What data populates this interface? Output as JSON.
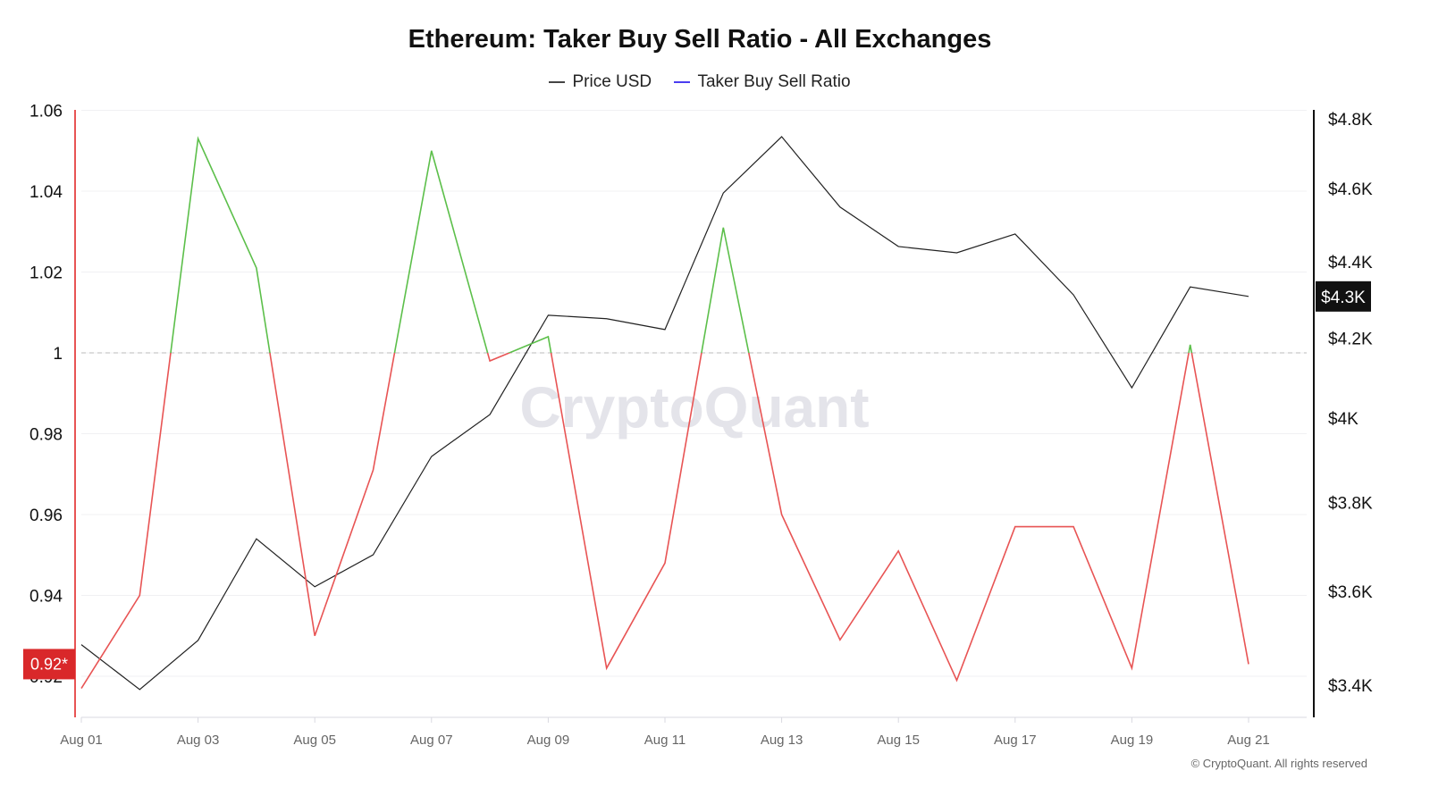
{
  "chart_data": {
    "type": "line",
    "title": "Ethereum: Taker Buy Sell Ratio - All Exchanges",
    "legend": [
      {
        "name": "Price USD",
        "color": "#444444"
      },
      {
        "name": "Taker Buy Sell Ratio",
        "color": "#4b3df0"
      }
    ],
    "legend_position": "top-center",
    "x": [
      "Aug 01",
      "Aug 02",
      "Aug 03",
      "Aug 04",
      "Aug 05",
      "Aug 06",
      "Aug 07",
      "Aug 08",
      "Aug 09",
      "Aug 10",
      "Aug 11",
      "Aug 12",
      "Aug 13",
      "Aug 14",
      "Aug 15",
      "Aug 16",
      "Aug 17",
      "Aug 18",
      "Aug 19",
      "Aug 20",
      "Aug 21"
    ],
    "x_tick_labels": [
      "Aug 01",
      "Aug 03",
      "Aug 05",
      "Aug 07",
      "Aug 09",
      "Aug 11",
      "Aug 13",
      "Aug 15",
      "Aug 17",
      "Aug 19",
      "Aug 21"
    ],
    "series": [
      {
        "name": "Taker Buy Sell Ratio",
        "axis": "left",
        "values": [
          0.917,
          0.94,
          1.053,
          1.021,
          0.93,
          0.971,
          1.05,
          0.998,
          1.004,
          0.922,
          0.948,
          1.031,
          0.96,
          0.929,
          0.951,
          0.919,
          0.957,
          0.957,
          0.922,
          1.002,
          0.923
        ],
        "color_above_1": "#5cbf4a",
        "color_below_1": "#e85454"
      },
      {
        "name": "Price USD",
        "axis": "right",
        "values": [
          3485,
          3391,
          3494,
          3717,
          3610,
          3681,
          3908,
          4009,
          4259,
          4250,
          4222,
          4588,
          4748,
          4549,
          4441,
          4424,
          4475,
          4312,
          4075,
          4333,
          4308
        ],
        "color": "#222222"
      }
    ],
    "left_axis": {
      "ticks": [
        "1.06",
        "1.04",
        "1.02",
        "1",
        "0.98",
        "0.96",
        "0.94",
        "0.92"
      ],
      "tick_values": [
        1.06,
        1.04,
        1.02,
        1,
        0.98,
        0.96,
        0.94,
        0.92
      ],
      "ylim": [
        0.905,
        1.06
      ],
      "color": "#e85454"
    },
    "right_axis": {
      "ticks": [
        "$4.8K",
        "$4.6K",
        "$4.4K",
        "$4.2K",
        "$4K",
        "$3.8K",
        "$3.6K",
        "$3.4K"
      ],
      "tick_values": [
        4800,
        4600,
        4400,
        4200,
        4000,
        3800,
        3600,
        3400
      ],
      "scale": "log"
    },
    "reference_line": 1,
    "last_value_labels": {
      "ratio": "0.92*",
      "price": "$4.3K"
    },
    "grid": true
  },
  "watermark": "CryptoQuant",
  "copyright": "© CryptoQuant. All rights reserved"
}
